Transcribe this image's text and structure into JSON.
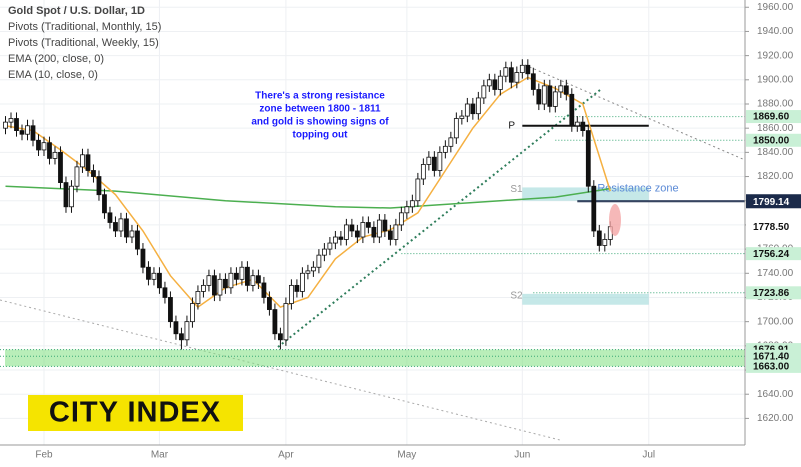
{
  "chart_data": {
    "type": "candlestick",
    "title": "Gold Spot / U.S. Dollar, 1D",
    "legend_lines": [
      "Pivots (Traditional, Monthly, 15)",
      "Pivots (Traditional, Weekly, 15)",
      "EMA (200, close, 0)",
      "EMA (10, close, 0)"
    ],
    "annotation": [
      "There's a strong resistance",
      "zone between 1800 - 1811",
      "and gold is showing signs of",
      "topping out"
    ],
    "logo": "CITY INDEX",
    "xlim": [
      -1,
      134.5
    ],
    "ylim": [
      1598,
      1966
    ],
    "xticks": [
      {
        "value": 7,
        "label": "Feb"
      },
      {
        "value": 28,
        "label": "Mar"
      },
      {
        "value": 51,
        "label": "Apr"
      },
      {
        "value": 73,
        "label": "May"
      },
      {
        "value": 94,
        "label": "Jun"
      },
      {
        "value": 117,
        "label": "Jul"
      }
    ],
    "yticks": [
      {
        "value": 1620,
        "label": "1620.00"
      },
      {
        "value": 1640,
        "label": "1640.00"
      },
      {
        "value": 1660,
        "label": "1660.00"
      },
      {
        "value": 1680,
        "label": "1680.00"
      },
      {
        "value": 1700,
        "label": "1700.00"
      },
      {
        "value": 1720,
        "label": "1720.00"
      },
      {
        "value": 1740,
        "label": "1740.00"
      },
      {
        "value": 1760,
        "label": "1760.00"
      },
      {
        "value": 1780,
        "label": "1780.00"
      },
      {
        "value": 1800,
        "label": "1800.00"
      },
      {
        "value": 1820,
        "label": "1820.00"
      },
      {
        "value": 1840,
        "label": "1840.00"
      },
      {
        "value": 1860,
        "label": "1860.00"
      },
      {
        "value": 1880,
        "label": "1880.00"
      },
      {
        "value": 1900,
        "label": "1900.00"
      },
      {
        "value": 1920,
        "label": "1920.00"
      },
      {
        "value": 1940,
        "label": "1940.00"
      },
      {
        "value": 1960,
        "label": "1960.00"
      }
    ],
    "up_color": "#ffffff",
    "down_color": "#111111",
    "x": [
      0,
      1,
      2,
      3,
      4,
      5,
      6,
      7,
      8,
      9,
      10,
      11,
      12,
      13,
      14,
      15,
      16,
      17,
      18,
      19,
      20,
      21,
      22,
      23,
      24,
      25,
      26,
      27,
      28,
      29,
      30,
      31,
      32,
      33,
      34,
      35,
      36,
      37,
      38,
      39,
      40,
      41,
      42,
      43,
      44,
      45,
      46,
      47,
      48,
      49,
      50,
      51,
      52,
      53,
      54,
      55,
      56,
      57,
      58,
      59,
      60,
      61,
      62,
      63,
      64,
      65,
      66,
      67,
      68,
      69,
      70,
      71,
      72,
      73,
      74,
      75,
      76,
      77,
      78,
      79,
      80,
      81,
      82,
      83,
      84,
      85,
      86,
      87,
      88,
      89,
      90,
      91,
      92,
      93,
      94,
      95,
      96,
      97,
      98,
      99,
      100,
      101,
      102,
      103,
      104,
      105,
      106,
      107,
      108,
      109,
      110
    ],
    "open": [
      1860,
      1865,
      1868,
      1858,
      1855,
      1862,
      1850,
      1842,
      1848,
      1835,
      1840,
      1815,
      1795,
      1812,
      1828,
      1838,
      1825,
      1820,
      1805,
      1790,
      1782,
      1775,
      1785,
      1770,
      1775,
      1760,
      1745,
      1735,
      1740,
      1728,
      1720,
      1700,
      1690,
      1685,
      1700,
      1715,
      1725,
      1730,
      1738,
      1722,
      1735,
      1728,
      1740,
      1735,
      1745,
      1730,
      1738,
      1732,
      1720,
      1710,
      1690,
      1685,
      1715,
      1730,
      1725,
      1740,
      1742,
      1745,
      1755,
      1760,
      1765,
      1770,
      1768,
      1780,
      1775,
      1770,
      1782,
      1778,
      1770,
      1784,
      1775,
      1768,
      1780,
      1790,
      1795,
      1800,
      1818,
      1830,
      1836,
      1825,
      1840,
      1845,
      1852,
      1868,
      1870,
      1880,
      1872,
      1885,
      1895,
      1900,
      1892,
      1903,
      1910,
      1898,
      1906,
      1912,
      1905,
      1892,
      1880,
      1895,
      1878,
      1890,
      1895,
      1888,
      1862,
      1865,
      1858,
      1812,
      1775,
      1763,
      1768
    ],
    "high": [
      1870,
      1873,
      1873,
      1863,
      1867,
      1867,
      1855,
      1853,
      1853,
      1845,
      1845,
      1820,
      1817,
      1833,
      1843,
      1843,
      1830,
      1825,
      1810,
      1795,
      1787,
      1790,
      1790,
      1780,
      1780,
      1765,
      1750,
      1745,
      1745,
      1733,
      1725,
      1705,
      1695,
      1705,
      1720,
      1730,
      1735,
      1743,
      1743,
      1740,
      1740,
      1745,
      1745,
      1750,
      1750,
      1743,
      1743,
      1737,
      1725,
      1715,
      1695,
      1720,
      1735,
      1735,
      1745,
      1747,
      1750,
      1760,
      1765,
      1770,
      1775,
      1775,
      1785,
      1785,
      1780,
      1787,
      1787,
      1783,
      1789,
      1789,
      1780,
      1785,
      1795,
      1800,
      1805,
      1823,
      1835,
      1841,
      1841,
      1845,
      1850,
      1857,
      1873,
      1875,
      1885,
      1885,
      1890,
      1900,
      1905,
      1905,
      1908,
      1915,
      1915,
      1911,
      1917,
      1917,
      1910,
      1897,
      1900,
      1900,
      1895,
      1900,
      1900,
      1893,
      1870,
      1870,
      1863,
      1817,
      1780,
      1773,
      1783
    ],
    "low": [
      1855,
      1860,
      1853,
      1850,
      1850,
      1845,
      1837,
      1837,
      1830,
      1830,
      1810,
      1790,
      1790,
      1807,
      1823,
      1820,
      1815,
      1800,
      1785,
      1777,
      1770,
      1770,
      1765,
      1765,
      1755,
      1740,
      1730,
      1730,
      1723,
      1715,
      1695,
      1685,
      1677,
      1680,
      1695,
      1710,
      1720,
      1725,
      1717,
      1717,
      1723,
      1723,
      1730,
      1730,
      1725,
      1725,
      1727,
      1715,
      1705,
      1685,
      1677,
      1680,
      1710,
      1720,
      1720,
      1735,
      1737,
      1740,
      1750,
      1755,
      1760,
      1763,
      1763,
      1770,
      1765,
      1765,
      1773,
      1765,
      1765,
      1770,
      1763,
      1763,
      1775,
      1785,
      1790,
      1795,
      1813,
      1825,
      1820,
      1820,
      1835,
      1840,
      1847,
      1863,
      1865,
      1867,
      1867,
      1880,
      1890,
      1887,
      1887,
      1898,
      1893,
      1893,
      1901,
      1900,
      1887,
      1875,
      1875,
      1873,
      1873,
      1885,
      1883,
      1857,
      1857,
      1853,
      1807,
      1770,
      1758,
      1758,
      1763
    ],
    "close": [
      1865,
      1868,
      1858,
      1855,
      1862,
      1850,
      1842,
      1848,
      1835,
      1840,
      1815,
      1795,
      1812,
      1828,
      1838,
      1825,
      1820,
      1805,
      1790,
      1782,
      1775,
      1785,
      1770,
      1775,
      1760,
      1745,
      1735,
      1740,
      1728,
      1720,
      1700,
      1690,
      1685,
      1700,
      1715,
      1725,
      1730,
      1738,
      1722,
      1735,
      1728,
      1740,
      1735,
      1745,
      1730,
      1738,
      1732,
      1720,
      1710,
      1690,
      1685,
      1715,
      1730,
      1725,
      1740,
      1742,
      1745,
      1755,
      1760,
      1765,
      1770,
      1768,
      1780,
      1775,
      1770,
      1782,
      1778,
      1770,
      1784,
      1775,
      1768,
      1780,
      1790,
      1795,
      1800,
      1818,
      1830,
      1836,
      1825,
      1840,
      1845,
      1852,
      1868,
      1870,
      1880,
      1872,
      1885,
      1895,
      1900,
      1892,
      1903,
      1910,
      1898,
      1906,
      1912,
      1905,
      1892,
      1880,
      1895,
      1878,
      1890,
      1895,
      1888,
      1862,
      1865,
      1858,
      1812,
      1775,
      1763,
      1768,
      1778.5
    ],
    "ema200": {
      "color": "#4caf50",
      "x": [
        0,
        20,
        40,
        60,
        70,
        80,
        90,
        100,
        110
      ],
      "values": [
        1812,
        1808,
        1800,
        1795,
        1794,
        1797,
        1800,
        1803,
        1810
      ]
    },
    "ema10": {
      "color": "#f5b041",
      "x": [
        0,
        5,
        10,
        15,
        20,
        25,
        30,
        35,
        40,
        45,
        50,
        55,
        60,
        65,
        70,
        75,
        80,
        85,
        90,
        95,
        100,
        105,
        110
      ],
      "values": [
        1862,
        1858,
        1842,
        1825,
        1805,
        1775,
        1738,
        1712,
        1728,
        1735,
        1712,
        1720,
        1752,
        1770,
        1776,
        1790,
        1825,
        1860,
        1888,
        1902,
        1893,
        1880,
        1808
      ]
    },
    "pivot": {
      "label": "P",
      "value": 1862,
      "from": 94,
      "to": 117
    },
    "zones": [
      {
        "label": "S1",
        "low": 1800,
        "high": 1811,
        "from": 94,
        "to": 117,
        "color": "#9fd8d8"
      },
      {
        "label": "S2",
        "low": 1714,
        "high": 1723,
        "from": 94,
        "to": 117,
        "color": "#9fd8d8"
      }
    ],
    "zone_label": "Resistance zone",
    "support_zone": {
      "low": 1663,
      "high": 1676.91,
      "color": "#7fe07f"
    },
    "price_tags": [
      {
        "value": 1869.6,
        "label": "1869.60",
        "style": "light",
        "from": 100
      },
      {
        "value": 1850,
        "label": "1850.00",
        "style": "light",
        "from": 100
      },
      {
        "value": 1800,
        "label": "1800.00",
        "style": "dark",
        "from": 104
      },
      {
        "value": 1799.14,
        "label": "1799.14",
        "style": "dark",
        "from": 104
      },
      {
        "value": 1778.5,
        "label": "1778.50",
        "style": "plain",
        "from": 110
      },
      {
        "value": 1756.24,
        "label": "1756.24",
        "style": "light",
        "from": 72
      },
      {
        "value": 1723.86,
        "label": "1723.86",
        "style": "light",
        "from": 96
      },
      {
        "value": 1676.91,
        "label": "1676.91",
        "style": "light",
        "from": -1
      },
      {
        "value": 1671.4,
        "label": "1671.40",
        "style": "light",
        "from": -1
      },
      {
        "value": 1663,
        "label": "1663.00",
        "style": "light",
        "from": -1
      }
    ]
  }
}
